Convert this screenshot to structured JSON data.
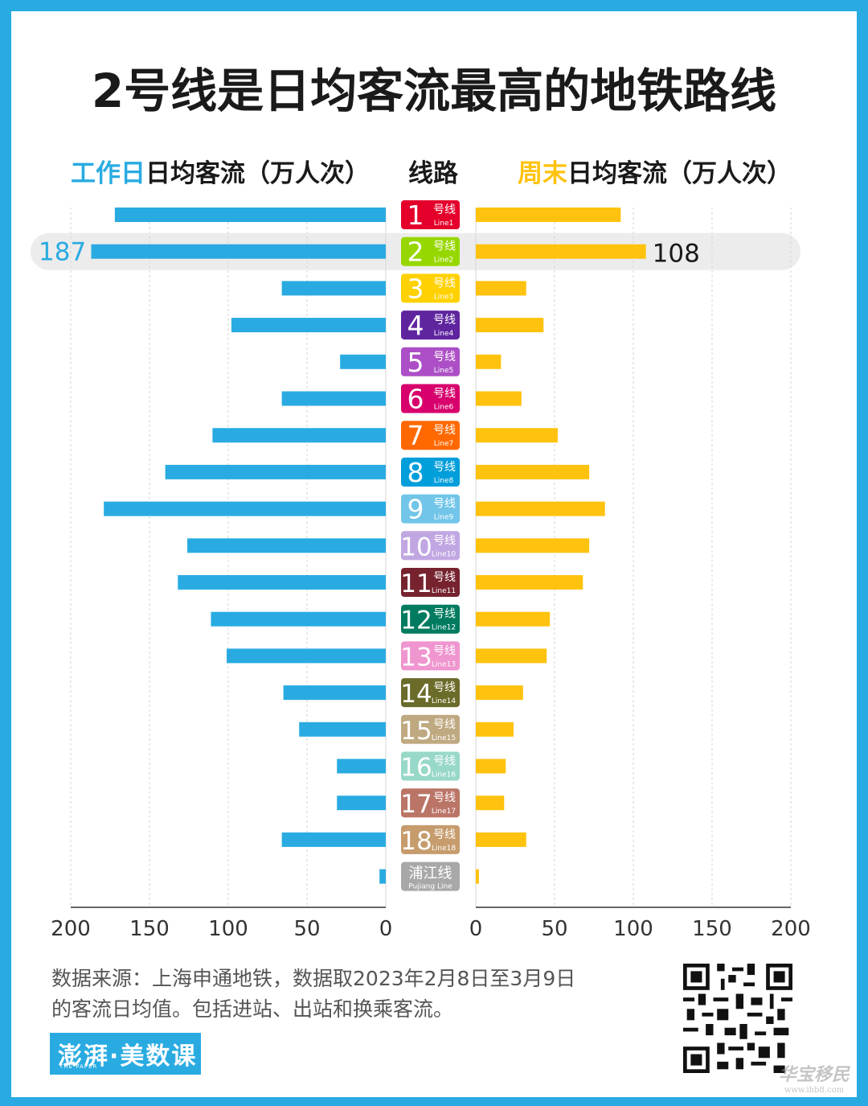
{
  "title": "2号线是日均客流最高的地铁路线",
  "header": {
    "left_highlight": "工作日",
    "left_rest": "日均客流（万人次）",
    "center": "线路",
    "right_highlight": "周末",
    "right_rest": "日均客流（万人次）"
  },
  "colors": {
    "weekday": "#29abe2",
    "weekend": "#ffc20e",
    "highlight_row": "#ececec"
  },
  "chart_data": {
    "type": "bar",
    "orientation": "horizontal-butterfly",
    "categories": [
      "1",
      "2",
      "3",
      "4",
      "5",
      "6",
      "7",
      "8",
      "9",
      "10",
      "11",
      "12",
      "13",
      "14",
      "15",
      "16",
      "17",
      "18",
      "浦江线"
    ],
    "category_badges": [
      {
        "num": "1",
        "cn": "号线",
        "en": "Line1",
        "color": "#e4002b"
      },
      {
        "num": "2",
        "cn": "号线",
        "en": "Line2",
        "color": "#97d700"
      },
      {
        "num": "3",
        "cn": "号线",
        "en": "Line3",
        "color": "#ffd100"
      },
      {
        "num": "4",
        "cn": "号线",
        "en": "Line4",
        "color": "#5f259f"
      },
      {
        "num": "5",
        "cn": "号线",
        "en": "Line5",
        "color": "#ac4fc6"
      },
      {
        "num": "6",
        "cn": "号线",
        "en": "Line6",
        "color": "#d7006c"
      },
      {
        "num": "7",
        "cn": "号线",
        "en": "Line7",
        "color": "#ff6900"
      },
      {
        "num": "8",
        "cn": "号线",
        "en": "Line8",
        "color": "#009edb"
      },
      {
        "num": "9",
        "cn": "号线",
        "en": "Line9",
        "color": "#71c5e8"
      },
      {
        "num": "10",
        "cn": "号线",
        "en": "Line10",
        "color": "#c1a7e2"
      },
      {
        "num": "11",
        "cn": "号线",
        "en": "Line11",
        "color": "#76232f"
      },
      {
        "num": "12",
        "cn": "号线",
        "en": "Line12",
        "color": "#007b5f"
      },
      {
        "num": "13",
        "cn": "号线",
        "en": "Line13",
        "color": "#ef95cf"
      },
      {
        "num": "14",
        "cn": "号线",
        "en": "Line14",
        "color": "#6b6b2a"
      },
      {
        "num": "15",
        "cn": "号线",
        "en": "Line15",
        "color": "#bfa980"
      },
      {
        "num": "16",
        "cn": "号线",
        "en": "Line16",
        "color": "#98d8c8"
      },
      {
        "num": "17",
        "cn": "号线",
        "en": "Line17",
        "color": "#bb7567"
      },
      {
        "num": "18",
        "cn": "号线",
        "en": "Line18",
        "color": "#c69c6d"
      },
      {
        "num": "",
        "cn": "浦江线",
        "en": "Pujiang Line",
        "color": "#a8a8a8"
      }
    ],
    "series": [
      {
        "name": "工作日日均客流（万人次）",
        "side": "left",
        "values": [
          172,
          187,
          66,
          98,
          29,
          66,
          110,
          140,
          179,
          126,
          132,
          111,
          101,
          65,
          55,
          31,
          31,
          66,
          4
        ]
      },
      {
        "name": "周末日均客流（万人次）",
        "side": "right",
        "values": [
          92,
          108,
          32,
          43,
          16,
          29,
          52,
          72,
          82,
          72,
          68,
          47,
          45,
          30,
          24,
          19,
          18,
          32,
          2
        ]
      }
    ],
    "highlight_index": 1,
    "highlight_labels": {
      "left": "187",
      "right": "108"
    },
    "xlim": [
      0,
      200
    ],
    "ticks": [
      "200",
      "150",
      "100",
      "50",
      "0"
    ],
    "ticks_right": [
      "0",
      "50",
      "100",
      "150",
      "200"
    ],
    "grid": true
  },
  "footer": {
    "note_line1": "数据来源：上海申通地铁，数据取2023年2月8日至3月9日",
    "note_line2": "的客流日均值。包括进站、出站和换乘客流。",
    "logo_main": "澎湃·美数课",
    "logo_sub": "THE PAPER",
    "watermark_main": "华宝移民",
    "watermark_sub": "www.ihb8.com"
  }
}
